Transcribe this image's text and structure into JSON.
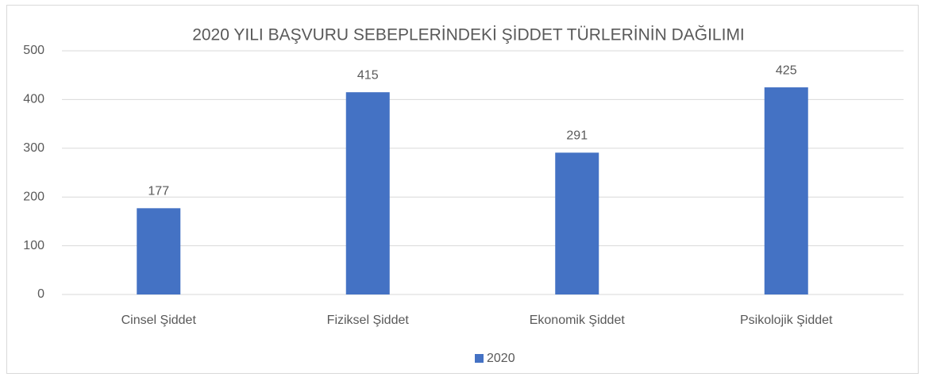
{
  "chart_data": {
    "type": "bar",
    "title": "2020 YILI BAŞVURU SEBEPLERİNDEKİ ŞİDDET TÜRLERİNİN DAĞILIMI",
    "categories": [
      "Cinsel Şiddet",
      "Fiziksel Şiddet",
      "Ekonomik Şiddet",
      "Psikolojik Şiddet"
    ],
    "series": [
      {
        "name": "2020",
        "color": "#4472c4",
        "values": [
          177,
          415,
          291,
          425
        ]
      }
    ],
    "ylim": [
      0,
      500
    ],
    "yticks": [
      0,
      100,
      200,
      300,
      400,
      500
    ],
    "grid": true,
    "legend": "bottom"
  }
}
